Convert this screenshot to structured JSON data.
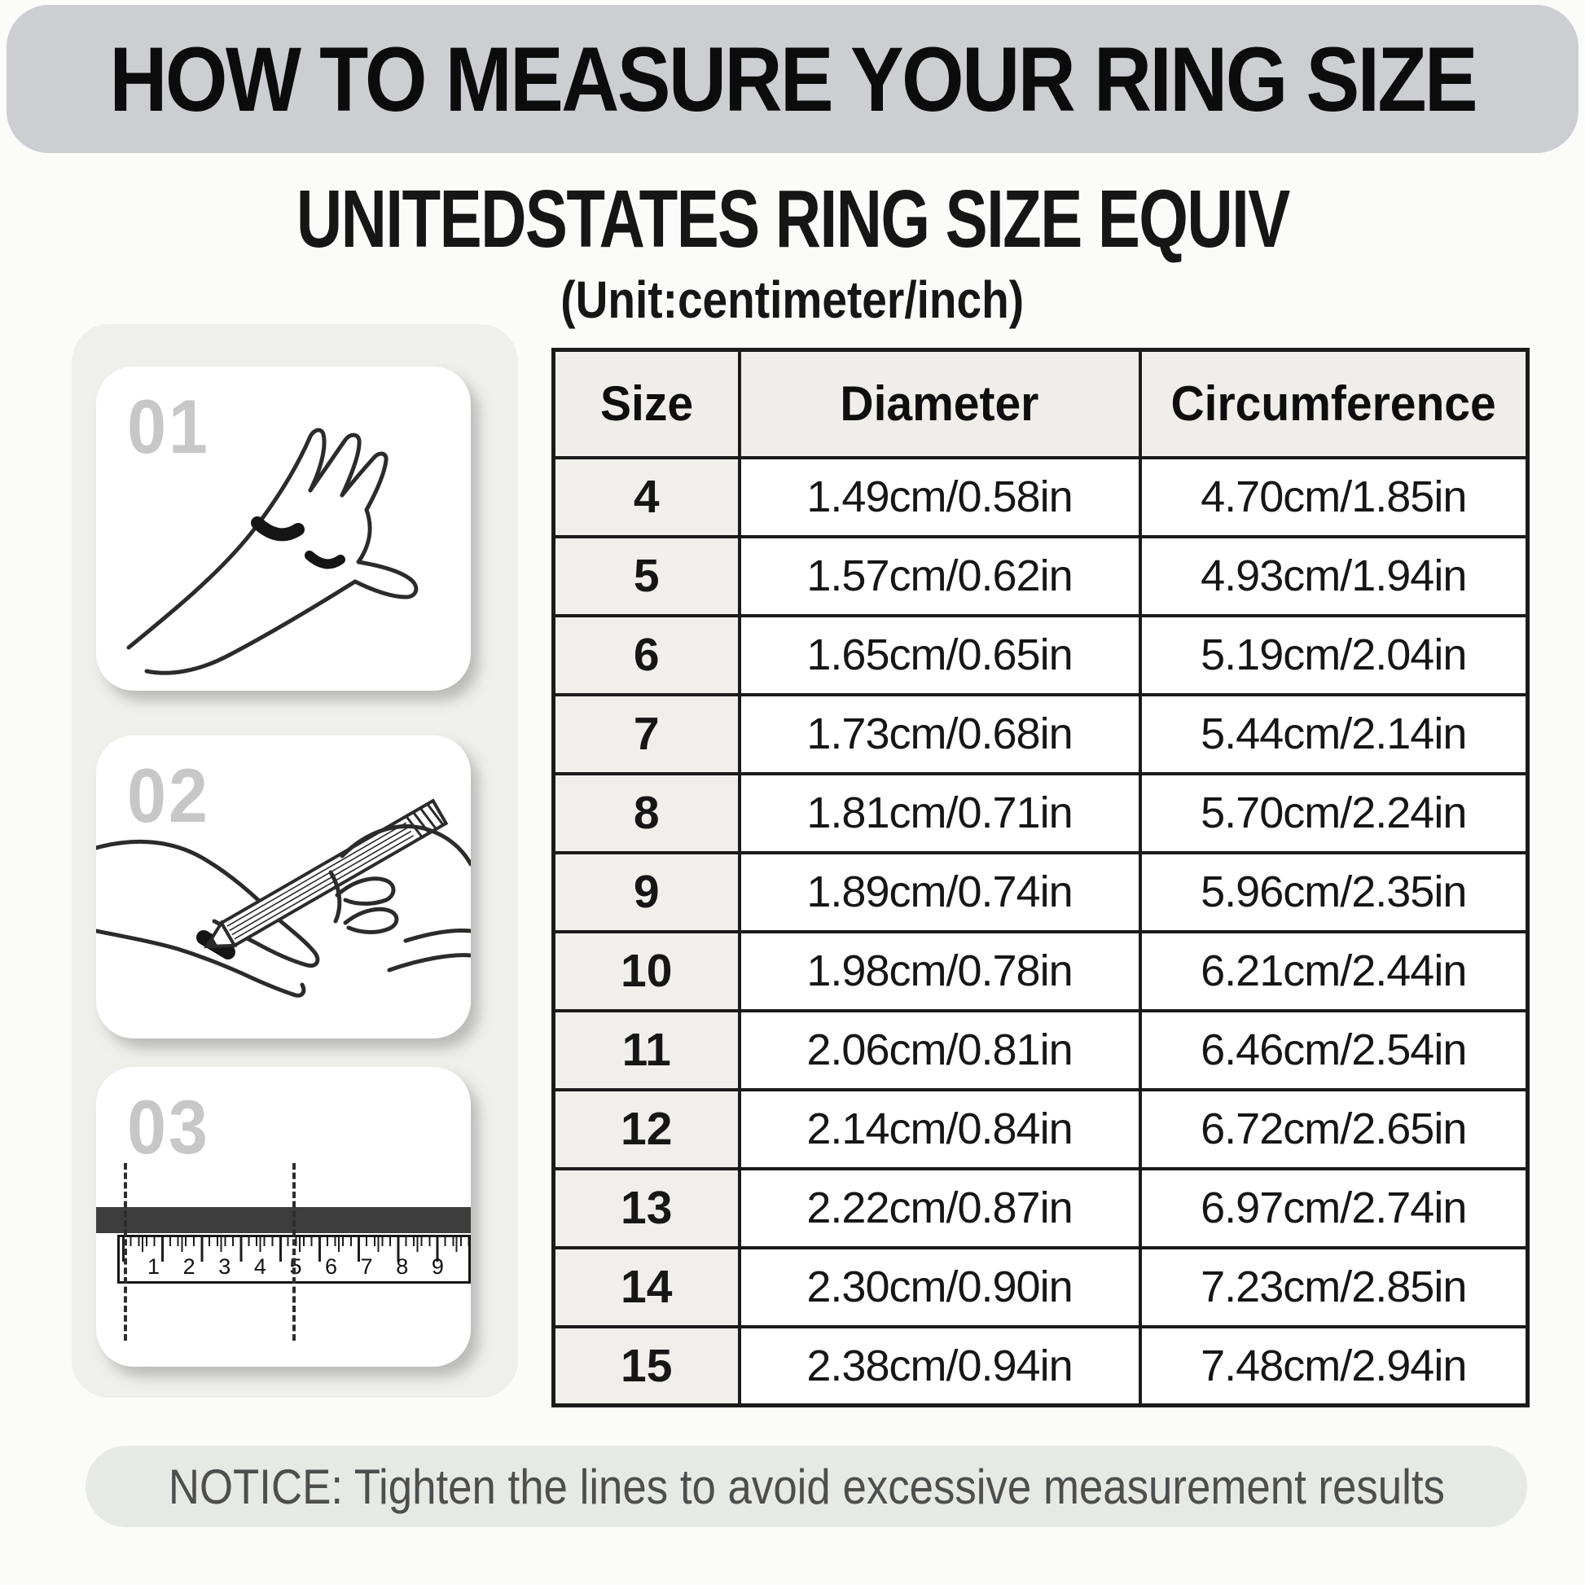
{
  "title": "HOW TO MEASURE YOUR RING SIZE",
  "subtitle": {
    "line1": "UNITEDSTATES RING SIZE EQUIV",
    "line2": "(Unit:centimeter/inch)"
  },
  "steps": [
    {
      "number": "01"
    },
    {
      "number": "02"
    },
    {
      "number": "03"
    }
  ],
  "ruler": {
    "numbers": [
      "1",
      "2",
      "3",
      "4",
      "5",
      "6",
      "7",
      "8",
      "9"
    ]
  },
  "table": {
    "headers": [
      "Size",
      "Diameter",
      "Circumference"
    ],
    "rows": [
      [
        "4",
        "1.49cm/0.58in",
        "4.70cm/1.85in"
      ],
      [
        "5",
        "1.57cm/0.62in",
        "4.93cm/1.94in"
      ],
      [
        "6",
        "1.65cm/0.65in",
        "5.19cm/2.04in"
      ],
      [
        "7",
        "1.73cm/0.68in",
        "5.44cm/2.14in"
      ],
      [
        "8",
        "1.81cm/0.71in",
        "5.70cm/2.24in"
      ],
      [
        "9",
        "1.89cm/0.74in",
        "5.96cm/2.35in"
      ],
      [
        "10",
        "1.98cm/0.78in",
        "6.21cm/2.44in"
      ],
      [
        "11",
        "2.06cm/0.81in",
        "6.46cm/2.54in"
      ],
      [
        "12",
        "2.14cm/0.84in",
        "6.72cm/2.65in"
      ],
      [
        "13",
        "2.22cm/0.87in",
        "6.97cm/2.74in"
      ],
      [
        "14",
        "2.30cm/0.90in",
        "7.23cm/2.85in"
      ],
      [
        "15",
        "2.38cm/0.94in",
        "7.48cm/2.94in"
      ]
    ]
  },
  "notice": "NOTICE: Tighten the lines to avoid excessive measurement results",
  "colors": {
    "title_band": "#cdced2",
    "panel": "#efefec",
    "table_header_bg": "#f0eeeb",
    "notice_bg": "#e7e9e5",
    "ink": "#1b1b1b",
    "cord_bar": "#3d3d3d",
    "step_number": "#c7c7c7"
  }
}
